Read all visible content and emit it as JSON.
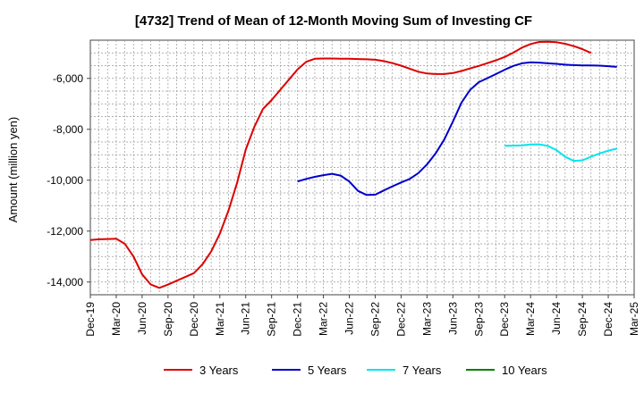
{
  "chart_data": {
    "type": "line",
    "title": "[4732]  Trend of Mean of 12-Month Moving Sum of Investing CF",
    "ylabel": "Amount (million yen)",
    "xlabel": "",
    "ylim": [
      -14500,
      -4500
    ],
    "yticks": [
      -14000,
      -12000,
      -10000,
      -8000,
      -6000
    ],
    "ytick_labels": [
      "-14,000",
      "-12,000",
      "-10,000",
      "-8,000",
      "-6,000"
    ],
    "xtick_labels": [
      "Dec-19",
      "Mar-20",
      "Jun-20",
      "Sep-20",
      "Dec-20",
      "Mar-21",
      "Jun-21",
      "Sep-21",
      "Dec-21",
      "Mar-22",
      "Jun-22",
      "Sep-22",
      "Dec-22",
      "Mar-23",
      "Jun-23",
      "Sep-23",
      "Dec-23",
      "Mar-24",
      "Jun-24",
      "Sep-24",
      "Dec-24",
      "Mar-25"
    ],
    "grid": true,
    "legend_position": "bottom",
    "series": [
      {
        "name": "3 Years",
        "color": "#dd0000",
        "start_index": 0,
        "values": [
          -12350,
          -12320,
          -12310,
          -12300,
          -12500,
          -13000,
          -13700,
          -14100,
          -14230,
          -14100,
          -13950,
          -13800,
          -13650,
          -13300,
          -12800,
          -12100,
          -11200,
          -10100,
          -8800,
          -7900,
          -7200,
          -6850,
          -6450,
          -6050,
          -5650,
          -5350,
          -5230,
          -5220,
          -5220,
          -5225,
          -5230,
          -5240,
          -5250,
          -5270,
          -5320,
          -5400,
          -5500,
          -5620,
          -5740,
          -5810,
          -5830,
          -5830,
          -5790,
          -5710,
          -5610,
          -5510,
          -5400,
          -5290,
          -5160,
          -4990,
          -4790,
          -4650,
          -4570,
          -4560,
          -4580,
          -4640,
          -4730,
          -4850,
          -5000
        ]
      },
      {
        "name": "5 Years",
        "color": "#0000cc",
        "start_index": 24,
        "values": [
          -10050,
          -9950,
          -9870,
          -9800,
          -9750,
          -9820,
          -10050,
          -10420,
          -10580,
          -10570,
          -10400,
          -10240,
          -10090,
          -9950,
          -9720,
          -9380,
          -8950,
          -8400,
          -7700,
          -6950,
          -6450,
          -6150,
          -5990,
          -5830,
          -5660,
          -5510,
          -5410,
          -5370,
          -5380,
          -5410,
          -5430,
          -5460,
          -5480,
          -5490,
          -5490,
          -5500,
          -5520,
          -5550
        ]
      },
      {
        "name": "7 Years",
        "color": "#00e5ee",
        "start_index": 48,
        "values": [
          -8650,
          -8640,
          -8630,
          -8600,
          -8590,
          -8650,
          -8820,
          -9080,
          -9240,
          -9220,
          -9080,
          -8950,
          -8840,
          -8760
        ]
      },
      {
        "name": "10 Years",
        "color": "#008000",
        "start_index": 0,
        "values": []
      }
    ]
  }
}
